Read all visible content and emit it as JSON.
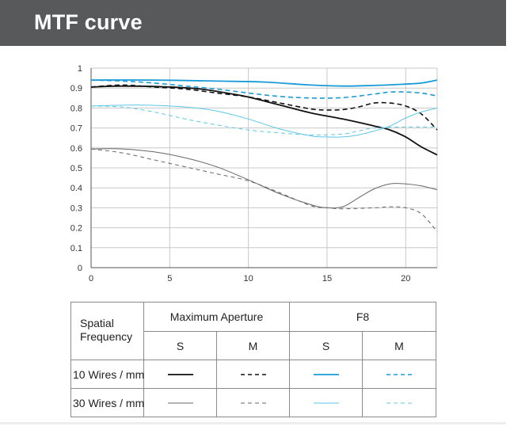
{
  "header": {
    "title": "MTF curve"
  },
  "chart_data": {
    "type": "line",
    "title": "",
    "xlabel": "",
    "ylabel": "",
    "xlim": [
      0,
      22
    ],
    "ylim": [
      0,
      1
    ],
    "x_ticks": [
      0,
      5,
      10,
      15,
      20
    ],
    "y_ticks": [
      0,
      0.1,
      0.2,
      0.3,
      0.4,
      0.5,
      0.6,
      0.7,
      0.8,
      0.9,
      1
    ],
    "y_tick_labels": [
      "0",
      "0.1",
      "0.2",
      "0.3",
      "0.4",
      "0.5",
      "0.6",
      "0.7",
      "0.8",
      "0.9",
      "1"
    ],
    "grid": true,
    "series": [
      {
        "aperture": "Maximum Aperture",
        "orientation": "S",
        "frequency": "10 Wires / mm",
        "color": "#111111",
        "dash": false,
        "width": 1.8,
        "points": [
          [
            0,
            0.905
          ],
          [
            2,
            0.91
          ],
          [
            5,
            0.905
          ],
          [
            7,
            0.895
          ],
          [
            9,
            0.87
          ],
          [
            10,
            0.855
          ],
          [
            12,
            0.815
          ],
          [
            14,
            0.775
          ],
          [
            16,
            0.745
          ],
          [
            18,
            0.71
          ],
          [
            19,
            0.69
          ],
          [
            20,
            0.655
          ],
          [
            21,
            0.605
          ],
          [
            22,
            0.565
          ]
        ]
      },
      {
        "aperture": "Maximum Aperture",
        "orientation": "M",
        "frequency": "10 Wires / mm",
        "color": "#111111",
        "dash": true,
        "width": 1.6,
        "points": [
          [
            0,
            0.905
          ],
          [
            2,
            0.915
          ],
          [
            4,
            0.905
          ],
          [
            6,
            0.895
          ],
          [
            8,
            0.875
          ],
          [
            10,
            0.855
          ],
          [
            12,
            0.825
          ],
          [
            14,
            0.795
          ],
          [
            15,
            0.79
          ],
          [
            16,
            0.792
          ],
          [
            17,
            0.805
          ],
          [
            18,
            0.825
          ],
          [
            19,
            0.825
          ],
          [
            20,
            0.81
          ],
          [
            21,
            0.77
          ],
          [
            22,
            0.69
          ]
        ]
      },
      {
        "aperture": "F8",
        "orientation": "S",
        "frequency": "10 Wires / mm",
        "color": "#1a9bd7",
        "dash": false,
        "width": 1.8,
        "points": [
          [
            0,
            0.94
          ],
          [
            4,
            0.94
          ],
          [
            8,
            0.935
          ],
          [
            11,
            0.93
          ],
          [
            14,
            0.915
          ],
          [
            16,
            0.91
          ],
          [
            18,
            0.913
          ],
          [
            20,
            0.92
          ],
          [
            21,
            0.925
          ],
          [
            22,
            0.94
          ]
        ]
      },
      {
        "aperture": "F8",
        "orientation": "M",
        "frequency": "10 Wires / mm",
        "color": "#1a9bd7",
        "dash": true,
        "width": 1.6,
        "points": [
          [
            0,
            0.94
          ],
          [
            2,
            0.935
          ],
          [
            4,
            0.925
          ],
          [
            6,
            0.91
          ],
          [
            8,
            0.895
          ],
          [
            10,
            0.875
          ],
          [
            12,
            0.858
          ],
          [
            14,
            0.85
          ],
          [
            16,
            0.852
          ],
          [
            18,
            0.87
          ],
          [
            19,
            0.88
          ],
          [
            20,
            0.88
          ],
          [
            21,
            0.875
          ],
          [
            22,
            0.86
          ]
        ]
      },
      {
        "aperture": "Maximum Aperture",
        "orientation": "S",
        "frequency": "30 Wires / mm",
        "color": "#666666",
        "dash": false,
        "width": 1,
        "points": [
          [
            0,
            0.595
          ],
          [
            2,
            0.595
          ],
          [
            4,
            0.58
          ],
          [
            6,
            0.55
          ],
          [
            8,
            0.505
          ],
          [
            10,
            0.44
          ],
          [
            12,
            0.37
          ],
          [
            14,
            0.315
          ],
          [
            15,
            0.3
          ],
          [
            16,
            0.305
          ],
          [
            17,
            0.35
          ],
          [
            18,
            0.395
          ],
          [
            19,
            0.42
          ],
          [
            20,
            0.42
          ],
          [
            21,
            0.41
          ],
          [
            22,
            0.39
          ]
        ]
      },
      {
        "aperture": "Maximum Aperture",
        "orientation": "M",
        "frequency": "30 Wires / mm",
        "color": "#666666",
        "dash": true,
        "width": 1,
        "points": [
          [
            0,
            0.595
          ],
          [
            2,
            0.575
          ],
          [
            4,
            0.54
          ],
          [
            6,
            0.505
          ],
          [
            8,
            0.47
          ],
          [
            10,
            0.435
          ],
          [
            12,
            0.375
          ],
          [
            14,
            0.31
          ],
          [
            15,
            0.3
          ],
          [
            16,
            0.295
          ],
          [
            18,
            0.3
          ],
          [
            19,
            0.305
          ],
          [
            20,
            0.3
          ],
          [
            21,
            0.27
          ],
          [
            22,
            0.18
          ]
        ]
      },
      {
        "aperture": "F8",
        "orientation": "S",
        "frequency": "30 Wires / mm",
        "color": "#5cc7e6",
        "dash": false,
        "width": 1,
        "points": [
          [
            0,
            0.81
          ],
          [
            3,
            0.815
          ],
          [
            6,
            0.805
          ],
          [
            8,
            0.785
          ],
          [
            10,
            0.745
          ],
          [
            12,
            0.695
          ],
          [
            14,
            0.66
          ],
          [
            15,
            0.655
          ],
          [
            16,
            0.655
          ],
          [
            17,
            0.665
          ],
          [
            18,
            0.685
          ],
          [
            19,
            0.71
          ],
          [
            20,
            0.75
          ],
          [
            21,
            0.78
          ],
          [
            22,
            0.8
          ]
        ]
      },
      {
        "aperture": "F8",
        "orientation": "M",
        "frequency": "30 Wires / mm",
        "color": "#5cc7e6",
        "dash": true,
        "width": 1,
        "points": [
          [
            0,
            0.81
          ],
          [
            2,
            0.805
          ],
          [
            4,
            0.78
          ],
          [
            6,
            0.745
          ],
          [
            8,
            0.715
          ],
          [
            10,
            0.69
          ],
          [
            12,
            0.675
          ],
          [
            14,
            0.665
          ],
          [
            16,
            0.67
          ],
          [
            17,
            0.685
          ],
          [
            18,
            0.7
          ],
          [
            20,
            0.705
          ],
          [
            22,
            0.705
          ]
        ]
      }
    ]
  },
  "legend": {
    "spatial_line1": "Spatial",
    "spatial_line2": "Frequency",
    "aperture_max": "Maximum Aperture",
    "aperture_f8": "F8",
    "s_label": "S",
    "m_label": "M",
    "row_10": "10 Wires / mm",
    "row_30": "30 Wires / mm"
  }
}
